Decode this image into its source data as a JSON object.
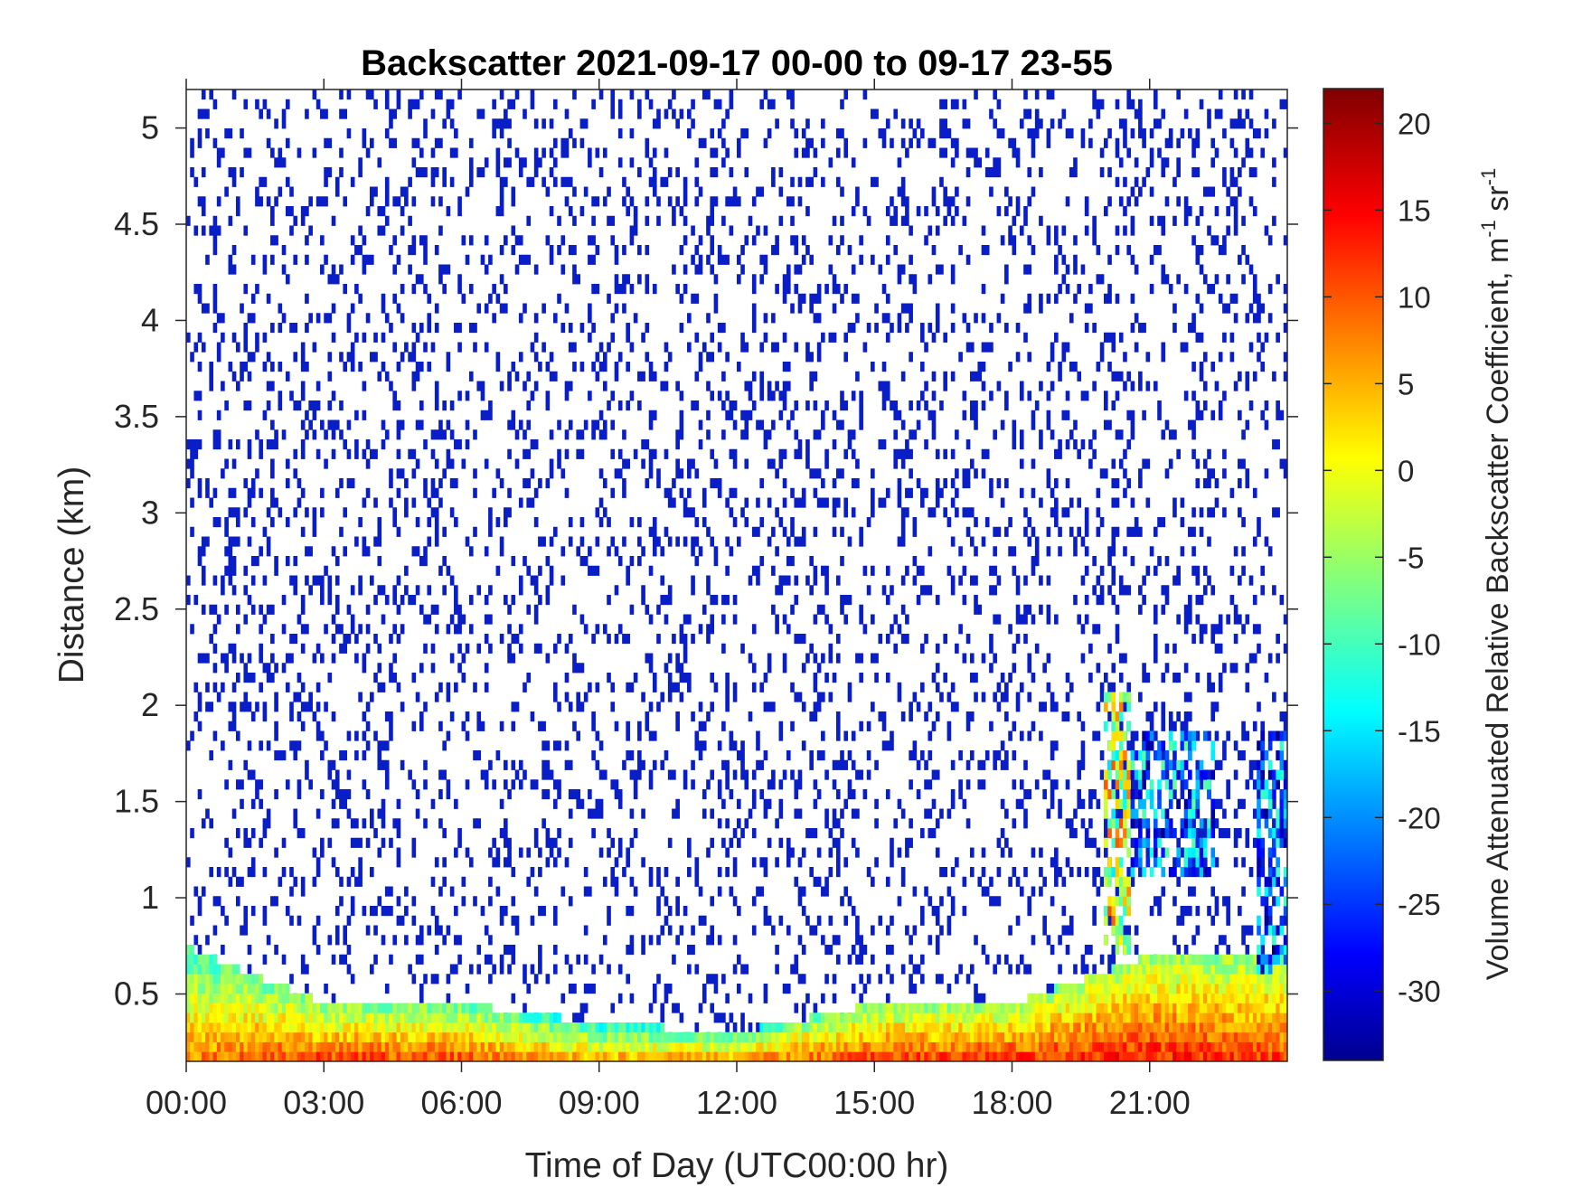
{
  "chart_data": {
    "type": "heatmap",
    "title": "Backscatter 2021-09-17 00-00 to 09-17 23-55",
    "xlabel": "Time of Day (UTC00:00 hr)",
    "ylabel": "Distance (km)",
    "xlim": [
      0,
      24
    ],
    "ylim": [
      0.15,
      5.2
    ],
    "x_ticks": [
      {
        "value": 0,
        "label": "00:00"
      },
      {
        "value": 3,
        "label": "03:00"
      },
      {
        "value": 6,
        "label": "06:00"
      },
      {
        "value": 9,
        "label": "09:00"
      },
      {
        "value": 12,
        "label": "12:00"
      },
      {
        "value": 15,
        "label": "15:00"
      },
      {
        "value": 18,
        "label": "18:00"
      },
      {
        "value": 21,
        "label": "21:00"
      }
    ],
    "y_ticks": [
      {
        "value": 0.5,
        "label": "0.5"
      },
      {
        "value": 1,
        "label": "1"
      },
      {
        "value": 1.5,
        "label": "1.5"
      },
      {
        "value": 2,
        "label": "2"
      },
      {
        "value": 2.5,
        "label": "2.5"
      },
      {
        "value": 3,
        "label": "3"
      },
      {
        "value": 3.5,
        "label": "3.5"
      },
      {
        "value": 4,
        "label": "4"
      },
      {
        "value": 4.5,
        "label": "4.5"
      },
      {
        "value": 5,
        "label": "5"
      }
    ],
    "colorbar": {
      "label": "Volume Attenuated Relative Backscatter Coefficient, m",
      "label_sup1": "-1",
      "label_mid": " sr",
      "label_sup2": "-1",
      "range": [
        -34,
        22
      ],
      "ticks": [
        {
          "value": 20,
          "label": "20"
        },
        {
          "value": 15,
          "label": "15"
        },
        {
          "value": 10,
          "label": "10"
        },
        {
          "value": 5,
          "label": "5"
        },
        {
          "value": 0,
          "label": "0"
        },
        {
          "value": -5,
          "label": "-5"
        },
        {
          "value": -10,
          "label": "-10"
        },
        {
          "value": -15,
          "label": "-15"
        },
        {
          "value": -20,
          "label": "-20"
        },
        {
          "value": -25,
          "label": "-25"
        },
        {
          "value": -30,
          "label": "-30"
        }
      ],
      "colormap": "jet"
    },
    "noise_color": "#0a1ec8",
    "surface_layer_profile": [
      {
        "x": 0,
        "y_low": 0.15,
        "y_high": 0.75,
        "value": 8
      },
      {
        "x": 3,
        "y_low": 0.15,
        "y_high": 0.45,
        "value": 12
      },
      {
        "x": 6,
        "y_low": 0.15,
        "y_high": 0.45,
        "value": 11
      },
      {
        "x": 9,
        "y_low": 0.15,
        "y_high": 0.35,
        "value": 6
      },
      {
        "x": 12,
        "y_low": 0.15,
        "y_high": 0.3,
        "value": 8
      },
      {
        "x": 15,
        "y_low": 0.15,
        "y_high": 0.45,
        "value": 12
      },
      {
        "x": 18,
        "y_low": 0.15,
        "y_high": 0.45,
        "value": 13
      },
      {
        "x": 21,
        "y_low": 0.15,
        "y_high": 0.7,
        "value": 14
      },
      {
        "x": 24,
        "y_low": 0.15,
        "y_high": 0.7,
        "value": 12
      }
    ],
    "cloud_events": [
      {
        "x_start": 20.0,
        "x_end": 20.6,
        "y_low": 0.7,
        "y_high": 2.05,
        "value": -2
      },
      {
        "x_start": 20.6,
        "x_end": 22.4,
        "y_low": 1.1,
        "y_high": 1.85,
        "value": -20
      },
      {
        "x_start": 23.3,
        "x_end": 24.0,
        "y_low": 0.6,
        "y_high": 1.85,
        "value": -22
      }
    ]
  }
}
